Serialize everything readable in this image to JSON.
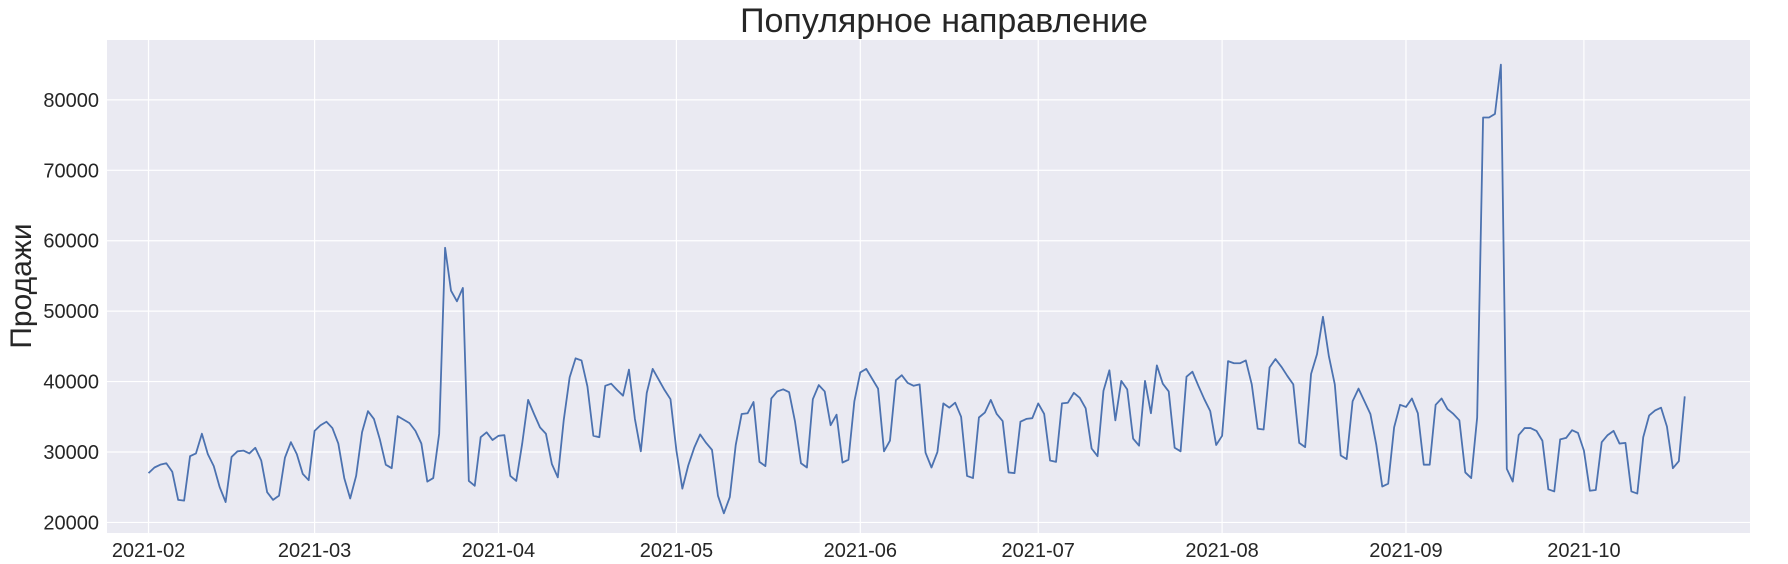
{
  "chart_data": {
    "type": "line",
    "title": "Популярное направление",
    "xlabel": "",
    "ylabel": "Продажи",
    "xlim": [
      "2021-01-25",
      "2021-10-29"
    ],
    "ylim": [
      18500,
      88500
    ],
    "x_ticks": [
      "2021-02",
      "2021-03",
      "2021-04",
      "2021-05",
      "2021-06",
      "2021-07",
      "2021-08",
      "2021-09",
      "2021-10"
    ],
    "y_ticks": [
      20000,
      30000,
      40000,
      50000,
      60000,
      70000,
      80000
    ],
    "grid": true,
    "legend": "none",
    "style": {
      "background": "#eaeaf2",
      "grid_color": "#ffffff",
      "line_color": "#4c72b0"
    },
    "series": [
      {
        "start_date": "2021-02-01",
        "freq": "1D",
        "values": [
          27000,
          27800,
          28200,
          28400,
          27200,
          23200,
          23100,
          29400,
          29800,
          32600,
          29700,
          28000,
          25000,
          22900,
          29300,
          30100,
          30200,
          29800,
          30600,
          28800,
          24300,
          23200,
          23800,
          29200,
          31400,
          29700,
          26900,
          26000,
          33000,
          33800,
          34300,
          33400,
          31200,
          26300,
          23400,
          26600,
          32800,
          35800,
          34700,
          31800,
          28200,
          27700,
          35100,
          34600,
          34100,
          33000,
          31200,
          25800,
          26300,
          32600,
          59000,
          52900,
          51400,
          53300,
          25900,
          25200,
          32100,
          32800,
          31700,
          32300,
          32400,
          26600,
          25900,
          31200,
          37400,
          35400,
          33500,
          32600,
          28300,
          26400,
          34500,
          40600,
          43300,
          43000,
          39300,
          32300,
          32100,
          39400,
          39700,
          38800,
          38000,
          41700,
          34700,
          30100,
          38400,
          41800,
          40300,
          38800,
          37500,
          30200,
          24800,
          28100,
          30600,
          32500,
          31300,
          30300,
          23800,
          21300,
          23600,
          31000,
          35400,
          35500,
          37100,
          28600,
          28000,
          37600,
          38600,
          38900,
          38500,
          34300,
          28400,
          27800,
          37500,
          39500,
          38600,
          33800,
          35300,
          28500,
          28900,
          37200,
          41300,
          41800,
          40400,
          39000,
          30100,
          31600,
          40200,
          40900,
          39800,
          39400,
          39600,
          29900,
          27800,
          30000,
          36900,
          36300,
          37000,
          35000,
          26600,
          26300,
          34900,
          35600,
          37400,
          35400,
          34400,
          27100,
          27000,
          34300,
          34700,
          34800,
          36900,
          35400,
          28800,
          28600,
          36900,
          37000,
          38400,
          37700,
          36200,
          30500,
          29400,
          38700,
          41600,
          34500,
          40100,
          38900,
          31900,
          30900,
          40100,
          35500,
          42300,
          39700,
          38600,
          30600,
          30100,
          40700,
          41400,
          39400,
          37500,
          35800,
          31000,
          32300,
          42900,
          42600,
          42600,
          43000,
          39600,
          33300,
          33200,
          42000,
          43200,
          42100,
          40800,
          39600,
          31300,
          30700,
          41100,
          43900,
          49200,
          43600,
          39600,
          29500,
          29000,
          37200,
          39000,
          37200,
          35400,
          31000,
          25100,
          25500,
          33500,
          36700,
          36400,
          37600,
          35500,
          28200,
          28200,
          36700,
          37600,
          36100,
          35400,
          34500,
          27100,
          26300,
          34900,
          77500,
          77500,
          78000,
          85000,
          27600,
          25800,
          32400,
          33400,
          33400,
          33000,
          31600,
          24700,
          24400,
          31800,
          32000,
          33100,
          32700,
          30200,
          24500,
          24600,
          31400,
          32400,
          33000,
          31200,
          31300,
          24400,
          24100,
          32100,
          35200,
          35900,
          36300,
          33600,
          27700,
          28700,
          37900
        ]
      }
    ]
  }
}
